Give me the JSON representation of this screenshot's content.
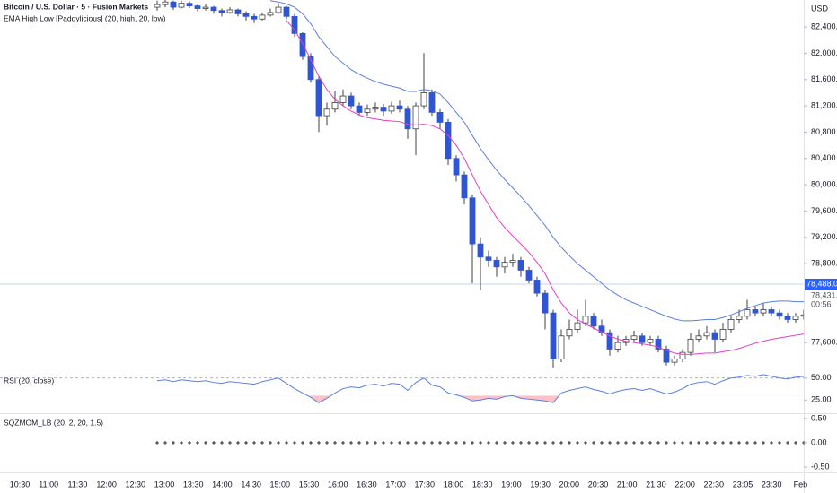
{
  "chart_data": [
    {
      "type": "candlestick",
      "title": "Bitcoin / U.S. Dollar · 5 · Fusion Markets",
      "subtitle": "EMA High Low [Paddylicious] (20, high, 20, low)",
      "currency": "USD",
      "up_color": "#ffffff",
      "down_color": "#2f55d4",
      "wick_color": "#404040",
      "ylim": [
        77220,
        82810
      ],
      "yticks": [
        {
          "value": 82400,
          "label": "82,400.00"
        },
        {
          "value": 82000,
          "label": "82,000.00"
        },
        {
          "value": 81600,
          "label": "81,600.00"
        },
        {
          "value": 81200,
          "label": "81,200.00"
        },
        {
          "value": 80800,
          "label": "80,800.00"
        },
        {
          "value": 80400,
          "label": "80,400.00"
        },
        {
          "value": 80000,
          "label": "80,000.00"
        },
        {
          "value": 79600,
          "label": "79,600.00"
        },
        {
          "value": 79200,
          "label": "79,200.00"
        },
        {
          "value": 78800,
          "label": "78,800.00"
        },
        {
          "value": 77600,
          "label": "77,600.00"
        }
      ],
      "price_line": {
        "value": 78488,
        "label": "78,488.00",
        "color": "#2962ff"
      },
      "last_price": {
        "value": 78431,
        "label": "78,431.00"
      },
      "countdown": "00:56",
      "x_labels": [
        "10:30",
        "11:00",
        "11:30",
        "12:00",
        "12:30",
        "13:00",
        "13:30",
        "14:00",
        "14:30",
        "15:00",
        "15:30",
        "16:00",
        "16:30",
        "17:00",
        "17:30",
        "18:00",
        "18:30",
        "19:00",
        "19:30",
        "20:00",
        "20:30",
        "21:00",
        "21:30",
        "22:00",
        "22:30",
        "23:05",
        "23:30",
        "Feb"
      ],
      "ohlc": [
        [
          82700,
          82800,
          82650,
          82740
        ],
        [
          82740,
          82830,
          82700,
          82780
        ],
        [
          82780,
          82800,
          82660,
          82700
        ],
        [
          82700,
          82800,
          82680,
          82760
        ],
        [
          82760,
          82790,
          82690,
          82720
        ],
        [
          82720,
          82740,
          82640,
          82680
        ],
        [
          82680,
          82750,
          82650,
          82700
        ],
        [
          82700,
          82720,
          82600,
          82650
        ],
        [
          82650,
          82680,
          82560,
          82620
        ],
        [
          82620,
          82700,
          82600,
          82660
        ],
        [
          82660,
          82680,
          82560,
          82600
        ],
        [
          82600,
          82640,
          82500,
          82560
        ],
        [
          82560,
          82600,
          82460,
          82520
        ],
        [
          82520,
          82620,
          82500,
          82580
        ],
        [
          82580,
          82680,
          82560,
          82620
        ],
        [
          82620,
          82760,
          82600,
          82700
        ],
        [
          82700,
          82720,
          82520,
          82560
        ],
        [
          82560,
          82600,
          82250,
          82300
        ],
        [
          82300,
          82320,
          81900,
          81950
        ],
        [
          81950,
          82000,
          81550,
          81600
        ],
        [
          81600,
          81650,
          80800,
          81050
        ],
        [
          81050,
          81250,
          80900,
          81150
        ],
        [
          81150,
          81420,
          81100,
          81250
        ],
        [
          81250,
          81450,
          81200,
          81350
        ],
        [
          81350,
          81400,
          81150,
          81200
        ],
        [
          81200,
          81250,
          81050,
          81100
        ],
        [
          81100,
          81220,
          81050,
          81150
        ],
        [
          81150,
          81250,
          81100,
          81180
        ],
        [
          81180,
          81230,
          81050,
          81120
        ],
        [
          81120,
          81260,
          81080,
          81200
        ],
        [
          81200,
          81280,
          81100,
          81150
        ],
        [
          81150,
          81200,
          80700,
          80850
        ],
        [
          80850,
          81250,
          80450,
          81200
        ],
        [
          81200,
          82000,
          81150,
          81400
        ],
        [
          81400,
          81450,
          81050,
          81100
        ],
        [
          81100,
          81150,
          80850,
          80950
        ],
        [
          80950,
          81000,
          80300,
          80400
        ],
        [
          80400,
          80450,
          80050,
          80150
        ],
        [
          80150,
          80200,
          79700,
          79800
        ],
        [
          79800,
          79850,
          78500,
          79100
        ],
        [
          79100,
          79200,
          78400,
          78900
        ],
        [
          78900,
          79000,
          78750,
          78850
        ],
        [
          78850,
          78900,
          78600,
          78750
        ],
        [
          78750,
          78900,
          78650,
          78820
        ],
        [
          78820,
          78950,
          78750,
          78850
        ],
        [
          78850,
          78900,
          78600,
          78700
        ],
        [
          78700,
          78750,
          78500,
          78550
        ],
        [
          78550,
          78600,
          78300,
          78350
        ],
        [
          78350,
          78400,
          77800,
          78050
        ],
        [
          78050,
          78100,
          77200,
          77350
        ],
        [
          77350,
          77800,
          77300,
          77700
        ],
        [
          77700,
          77950,
          77650,
          77800
        ],
        [
          77800,
          78100,
          77750,
          77900
        ],
        [
          77900,
          78250,
          77850,
          78000
        ],
        [
          78000,
          78050,
          77800,
          77850
        ],
        [
          77850,
          77950,
          77700,
          77750
        ],
        [
          77750,
          77800,
          77400,
          77500
        ],
        [
          77500,
          77700,
          77450,
          77600
        ],
        [
          77600,
          77700,
          77550,
          77650
        ],
        [
          77650,
          77780,
          77600,
          77700
        ],
        [
          77700,
          77750,
          77550,
          77600
        ],
        [
          77600,
          77700,
          77550,
          77650
        ],
        [
          77650,
          77700,
          77450,
          77500
        ],
        [
          77500,
          77550,
          77250,
          77300
        ],
        [
          77300,
          77400,
          77250,
          77350
        ],
        [
          77350,
          77500,
          77300,
          77450
        ],
        [
          77450,
          77750,
          77400,
          77650
        ],
        [
          77650,
          77800,
          77600,
          77700
        ],
        [
          77700,
          77850,
          77650,
          77750
        ],
        [
          77750,
          77800,
          77450,
          77650
        ],
        [
          77650,
          77900,
          77600,
          77800
        ],
        [
          77800,
          78000,
          77750,
          77950
        ],
        [
          77950,
          78100,
          77900,
          78000
        ],
        [
          78000,
          78250,
          77950,
          78100
        ],
        [
          78100,
          78150,
          78000,
          78050
        ],
        [
          78050,
          78200,
          78000,
          78100
        ],
        [
          78100,
          78150,
          78000,
          78050
        ],
        [
          78050,
          78100,
          77950,
          78000
        ],
        [
          78000,
          78050,
          77900,
          77950
        ],
        [
          77950,
          78050,
          77900,
          78000
        ],
        [
          78000,
          78100,
          77950,
          78020
        ]
      ],
      "series": [
        {
          "color": "#5b7fde",
          "values": [
            null,
            null,
            null,
            null,
            null,
            null,
            null,
            null,
            null,
            null,
            null,
            null,
            null,
            null,
            82800,
            82780,
            82750,
            82700,
            82600,
            82450,
            82250,
            82100,
            81950,
            81850,
            81750,
            81680,
            81620,
            81570,
            81530,
            81500,
            81470,
            81420,
            81420,
            81450,
            81430,
            81380,
            81250,
            81100,
            80950,
            80750,
            80550,
            80380,
            80220,
            80080,
            79950,
            79820,
            79680,
            79530,
            79380,
            79200,
            79050,
            78920,
            78800,
            78700,
            78600,
            78500,
            78400,
            78320,
            78250,
            78200,
            78150,
            78100,
            78050,
            78000,
            77960,
            77930,
            77930,
            77940,
            77950,
            77950,
            77980,
            78020,
            78070,
            78120,
            78160,
            78200,
            78220,
            78230,
            78230,
            78220,
            78220
          ]
        },
        {
          "color": "#e33fc9",
          "values": [
            null,
            null,
            null,
            null,
            null,
            null,
            null,
            null,
            null,
            null,
            null,
            null,
            null,
            null,
            null,
            null,
            82500,
            82350,
            82150,
            81900,
            81650,
            81450,
            81300,
            81200,
            81120,
            81060,
            81020,
            81000,
            80980,
            80970,
            80960,
            80920,
            80910,
            80920,
            80900,
            80850,
            80750,
            80600,
            80400,
            80150,
            79900,
            79700,
            79500,
            79350,
            79220,
            79100,
            78970,
            78820,
            78650,
            78400,
            78200,
            78050,
            77950,
            77880,
            77820,
            77760,
            77700,
            77650,
            77620,
            77600,
            77580,
            77560,
            77530,
            77480,
            77440,
            77420,
            77420,
            77430,
            77440,
            77440,
            77460,
            77480,
            77510,
            77550,
            77590,
            77620,
            77650,
            77670,
            77690,
            77710,
            77730
          ]
        }
      ]
    },
    {
      "type": "line",
      "title": "RSI (20, close)",
      "color": "#5b7fde",
      "ylim": [
        10,
        61
      ],
      "yticks": [
        {
          "value": 50,
          "label": "50.00"
        },
        {
          "value": 25,
          "label": "25.00"
        }
      ],
      "mid_level": 50,
      "oversold": 30,
      "oversold_color": "#f23645",
      "values": [
        47,
        48,
        46,
        48,
        47,
        46,
        47,
        45,
        44,
        46,
        45,
        44,
        43,
        46,
        48,
        50,
        44,
        38,
        33,
        28,
        22,
        27,
        33,
        38,
        40,
        39,
        42,
        43,
        41,
        44,
        43,
        36,
        45,
        50,
        42,
        40,
        33,
        31,
        28,
        24,
        25,
        27,
        26,
        29,
        30,
        27,
        26,
        25,
        24,
        22,
        33,
        36,
        38,
        40,
        37,
        35,
        32,
        35,
        37,
        38,
        36,
        38,
        35,
        32,
        34,
        38,
        43,
        45,
        46,
        43,
        47,
        50,
        51,
        53,
        52,
        54,
        52,
        50,
        49,
        51,
        52
      ]
    },
    {
      "type": "dots",
      "title": "SQZMOM_LB (20, 2, 20, 1.5)",
      "color": "#3b3b3b",
      "ylim": [
        -0.61,
        0.59
      ],
      "yticks": [
        {
          "value": 0.5,
          "label": "0.50"
        },
        {
          "value": 0,
          "label": "0.00"
        },
        {
          "value": -0.5,
          "label": "-0.50"
        }
      ],
      "values": [
        0,
        0,
        0,
        0,
        0,
        0,
        0,
        0,
        0,
        0,
        0,
        0,
        0,
        0,
        0,
        0,
        0,
        0,
        0,
        0,
        0,
        0,
        0,
        0,
        0,
        0,
        0,
        0,
        0,
        0,
        0,
        0,
        0,
        0,
        0,
        0,
        0,
        0,
        0,
        0,
        0,
        0,
        0,
        0,
        0,
        0,
        0,
        0,
        0,
        0,
        0,
        0,
        0,
        0,
        0,
        0,
        0,
        0,
        0,
        0,
        0,
        0,
        0,
        0,
        0,
        0,
        0,
        0,
        0,
        0,
        0,
        0,
        0,
        0,
        0,
        0,
        0,
        0,
        0,
        0,
        0
      ]
    }
  ]
}
